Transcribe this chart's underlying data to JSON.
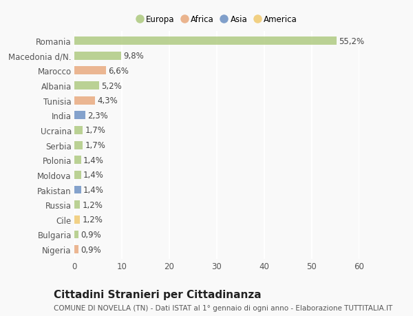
{
  "countries": [
    "Romania",
    "Macedonia d/N.",
    "Marocco",
    "Albania",
    "Tunisia",
    "India",
    "Ucraina",
    "Serbia",
    "Polonia",
    "Moldova",
    "Pakistan",
    "Russia",
    "Cile",
    "Bulgaria",
    "Nigeria"
  ],
  "values": [
    55.2,
    9.8,
    6.6,
    5.2,
    4.3,
    2.3,
    1.7,
    1.7,
    1.4,
    1.4,
    1.4,
    1.2,
    1.2,
    0.9,
    0.9
  ],
  "labels": [
    "55,2%",
    "9,8%",
    "6,6%",
    "5,2%",
    "4,3%",
    "2,3%",
    "1,7%",
    "1,7%",
    "1,4%",
    "1,4%",
    "1,4%",
    "1,2%",
    "1,2%",
    "0,9%",
    "0,9%"
  ],
  "regions": [
    "Europa",
    "Europa",
    "Africa",
    "Europa",
    "Africa",
    "Asia",
    "Europa",
    "Europa",
    "Europa",
    "Europa",
    "Asia",
    "Europa",
    "America",
    "Europa",
    "Africa"
  ],
  "colors": {
    "Europa": "#adc97e",
    "Africa": "#e8a87c",
    "Asia": "#6b8fc2",
    "America": "#f0c96e"
  },
  "legend_labels": [
    "Europa",
    "Africa",
    "Asia",
    "America"
  ],
  "legend_colors": [
    "#adc97e",
    "#e8a87c",
    "#6b8fc2",
    "#f0c96e"
  ],
  "xlim": [
    0,
    60
  ],
  "xticks": [
    0,
    10,
    20,
    30,
    40,
    50,
    60
  ],
  "title": "Cittadini Stranieri per Cittadinanza",
  "subtitle": "COMUNE DI NOVELLA (TN) - Dati ISTAT al 1° gennaio di ogni anno - Elaborazione TUTTITALIA.IT",
  "background_color": "#f9f9f9",
  "grid_color": "#ffffff",
  "bar_height": 0.55,
  "label_fontsize": 8.5,
  "tick_fontsize": 8.5,
  "title_fontsize": 11,
  "subtitle_fontsize": 7.5
}
